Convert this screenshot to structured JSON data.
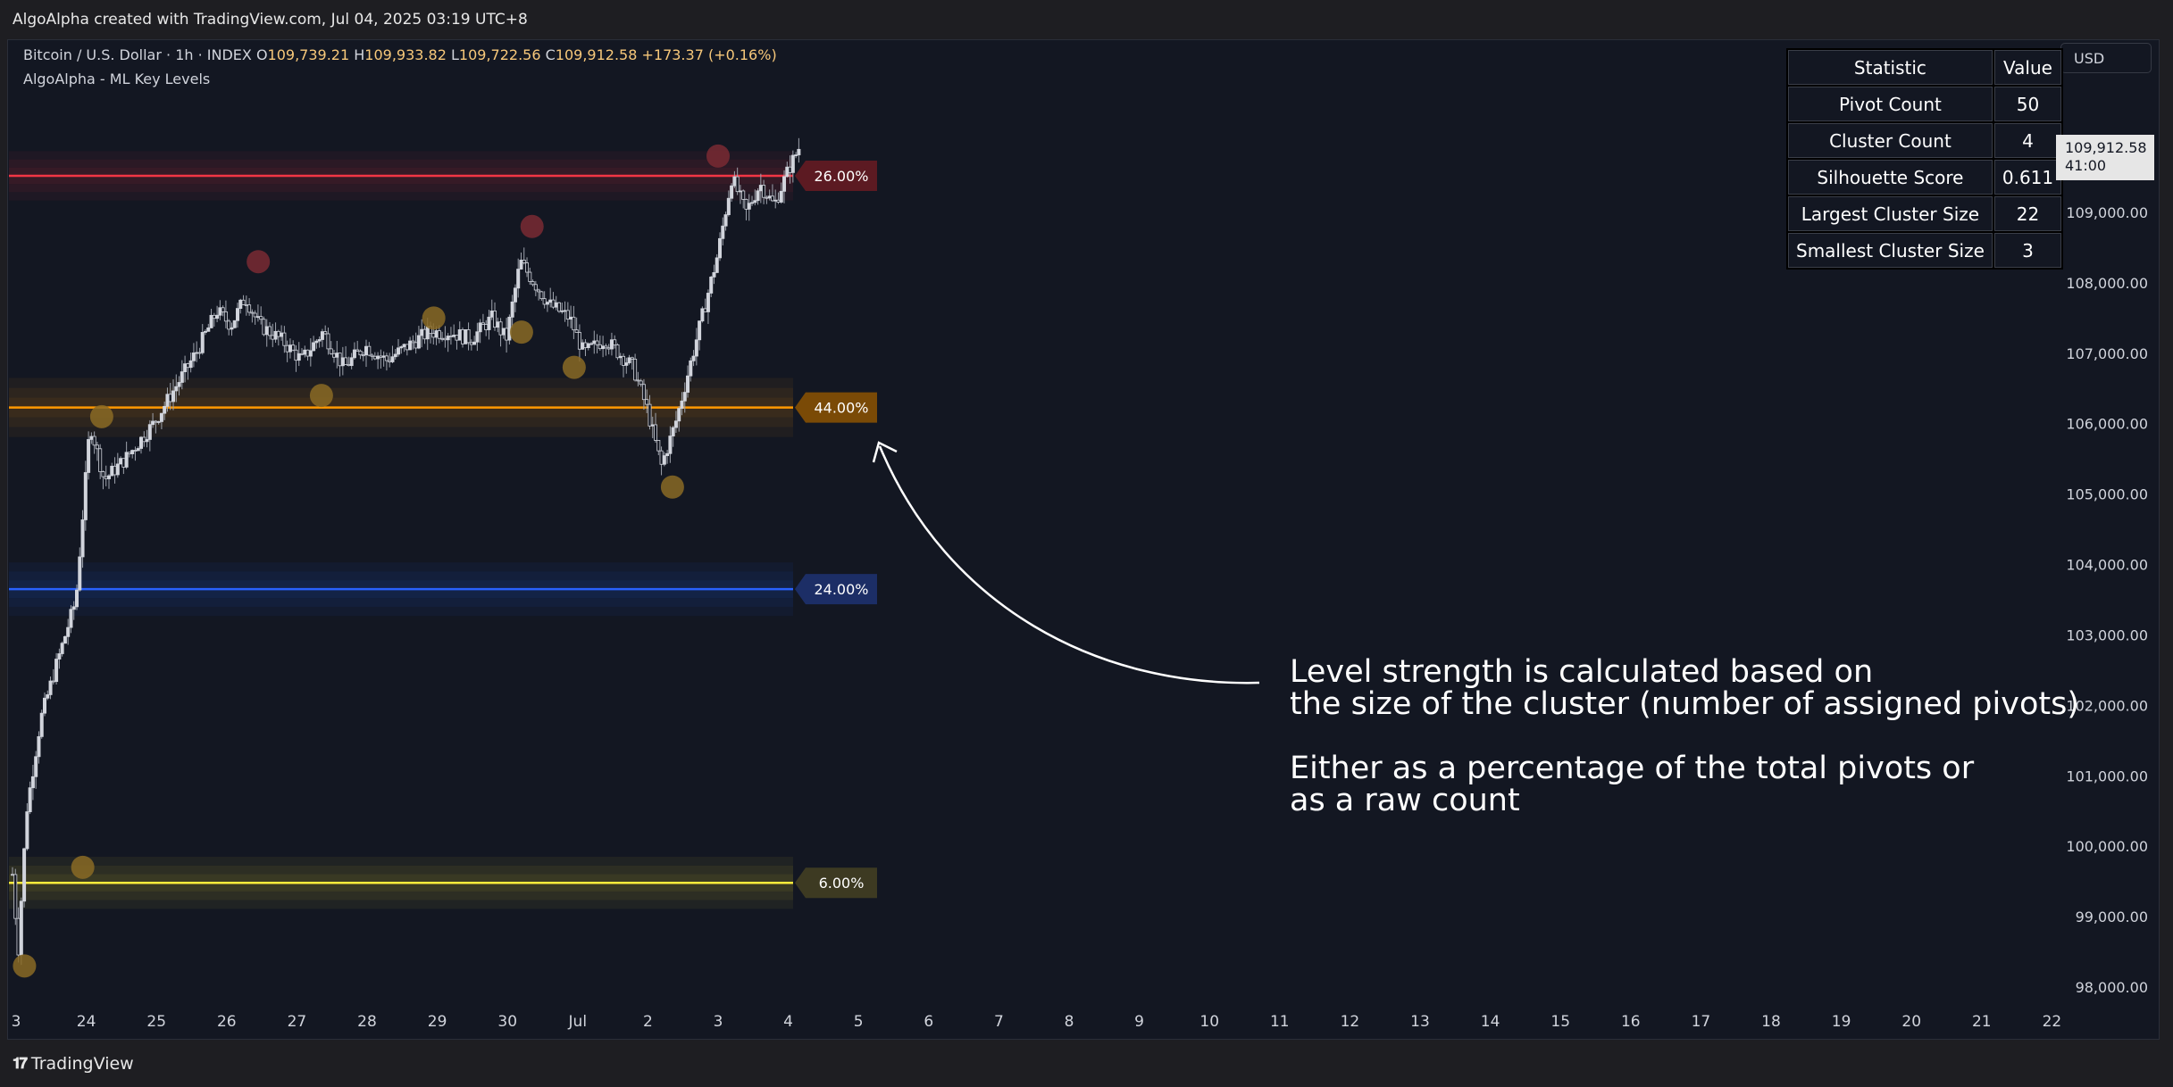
{
  "header": {
    "credit": "AlgoAlpha created with TradingView.com, Jul 04, 2025 03:19 UTC+8"
  },
  "footer": {
    "brand_icon": "tradingview-logo-icon",
    "brand": "TradingView"
  },
  "legend": {
    "symbol": "Bitcoin / U.S. Dollar · 1h · INDEX",
    "open_label": "O",
    "open": "109,739.21",
    "high_label": "H",
    "high": "109,933.82",
    "low_label": "L",
    "low": "109,722.56",
    "close_label": "C",
    "close": "109,912.58",
    "change": "+173.37 (+0.16%)",
    "indicator": "AlgoAlpha - ML Key Levels"
  },
  "currency_button": "USD",
  "price_badge": {
    "price": "109,912.58",
    "countdown": "41:00"
  },
  "stats_table": {
    "header": [
      "Statistic",
      "Value"
    ],
    "rows": [
      [
        "Pivot Count",
        "50"
      ],
      [
        "Cluster Count",
        "4"
      ],
      [
        "Silhouette Score",
        "0.611"
      ],
      [
        "Largest Cluster Size",
        "22"
      ],
      [
        "Smallest Cluster Size",
        "3"
      ]
    ]
  },
  "annotation": {
    "line1": "Level strength is calculated based on",
    "line2": "the size of the cluster (number of assigned pivots)",
    "line3": "Either as a percentage of the total pivots or",
    "line4": "as a raw count"
  },
  "colors": {
    "background": "#131722",
    "candle": "#d1d4dc",
    "red_level": "#f23645",
    "orange_level": "#ff9800",
    "blue_level": "#2962ff",
    "yellow_level": "#ffeb3b"
  },
  "chart_data": {
    "type": "candlestick",
    "ylim": [
      97800,
      111300
    ],
    "y_ticks": [
      98000,
      99000,
      100000,
      101000,
      102000,
      103000,
      104000,
      105000,
      106000,
      107000,
      108000,
      109000
    ],
    "y_tick_labels": [
      "98,000.00",
      "99,000.00",
      "100,000.00",
      "101,000.00",
      "102,000.00",
      "103,000.00",
      "104,000.00",
      "105,000.00",
      "106,000.00",
      "107,000.00",
      "108,000.00",
      "109,000.00"
    ],
    "x_tick_labels": [
      "3",
      "24",
      "25",
      "26",
      "27",
      "28",
      "29",
      "30",
      "Jul",
      "2",
      "3",
      "4",
      "5",
      "6",
      "7",
      "8",
      "9",
      "10",
      "11",
      "12",
      "13",
      "14",
      "15",
      "16",
      "17",
      "18",
      "19",
      "20",
      "21",
      "22"
    ],
    "last_price": 109912.58,
    "price_path": [
      [
        0,
        99600
      ],
      [
        0.08,
        98500
      ],
      [
        0.2,
        100500
      ],
      [
        0.4,
        101800
      ],
      [
        0.6,
        102500
      ],
      [
        0.9,
        103500
      ],
      [
        1.1,
        106000
      ],
      [
        1.3,
        105200
      ],
      [
        1.6,
        105500
      ],
      [
        2.0,
        106000
      ],
      [
        2.3,
        106500
      ],
      [
        2.6,
        107000
      ],
      [
        2.9,
        107600
      ],
      [
        3.1,
        107400
      ],
      [
        3.3,
        107800
      ],
      [
        3.5,
        107400
      ],
      [
        3.8,
        107200
      ],
      [
        4.1,
        106900
      ],
      [
        4.4,
        107300
      ],
      [
        4.7,
        106800
      ],
      [
        5.0,
        107100
      ],
      [
        5.3,
        106900
      ],
      [
        5.6,
        107100
      ],
      [
        5.9,
        107300
      ],
      [
        6.2,
        107300
      ],
      [
        6.5,
        107200
      ],
      [
        6.8,
        107500
      ],
      [
        7.0,
        107200
      ],
      [
        7.2,
        108300
      ],
      [
        7.4,
        108000
      ],
      [
        7.6,
        107700
      ],
      [
        7.9,
        107500
      ],
      [
        8.1,
        107000
      ],
      [
        8.4,
        107200
      ],
      [
        8.6,
        107000
      ],
      [
        8.8,
        106800
      ],
      [
        9.0,
        106200
      ],
      [
        9.2,
        105400
      ],
      [
        9.4,
        106000
      ],
      [
        9.6,
        106800
      ],
      [
        9.8,
        107600
      ],
      [
        10.0,
        108400
      ],
      [
        10.2,
        109500
      ],
      [
        10.4,
        109000
      ],
      [
        10.6,
        109400
      ],
      [
        10.8,
        109100
      ],
      [
        11.0,
        109600
      ],
      [
        11.15,
        109912
      ]
    ],
    "levels": [
      {
        "name": "26.00%",
        "value": 109520,
        "color": "#f23645",
        "label_bg": "#5c1a22",
        "band": 350
      },
      {
        "name": "44.00%",
        "value": 106230,
        "color": "#ff9800",
        "label_bg": "#7a4a06",
        "band": 420
      },
      {
        "name": "24.00%",
        "value": 103650,
        "color": "#2962ff",
        "label_bg": "#1c2e66",
        "band": 380
      },
      {
        "name": "6.00%",
        "value": 99480,
        "color": "#ffeb3b",
        "label_bg": "#3d3a22",
        "band": 370
      }
    ],
    "pivots": [
      {
        "x": 0.12,
        "y": 98300,
        "color": "#8a6a24"
      },
      {
        "x": 0.95,
        "y": 99700,
        "color": "#8a6a24"
      },
      {
        "x": 1.22,
        "y": 106100,
        "color": "#8a6a24"
      },
      {
        "x": 3.45,
        "y": 108300,
        "color": "#7a2a33"
      },
      {
        "x": 4.35,
        "y": 106400,
        "color": "#8a6a24"
      },
      {
        "x": 5.95,
        "y": 107500,
        "color": "#8a6a24"
      },
      {
        "x": 7.2,
        "y": 107300,
        "color": "#8a6a24"
      },
      {
        "x": 7.35,
        "y": 108800,
        "color": "#7a2a33"
      },
      {
        "x": 7.95,
        "y": 106800,
        "color": "#8a6a24"
      },
      {
        "x": 9.35,
        "y": 105100,
        "color": "#8a6a24"
      },
      {
        "x": 10.0,
        "y": 109800,
        "color": "#7a2a33"
      }
    ]
  }
}
